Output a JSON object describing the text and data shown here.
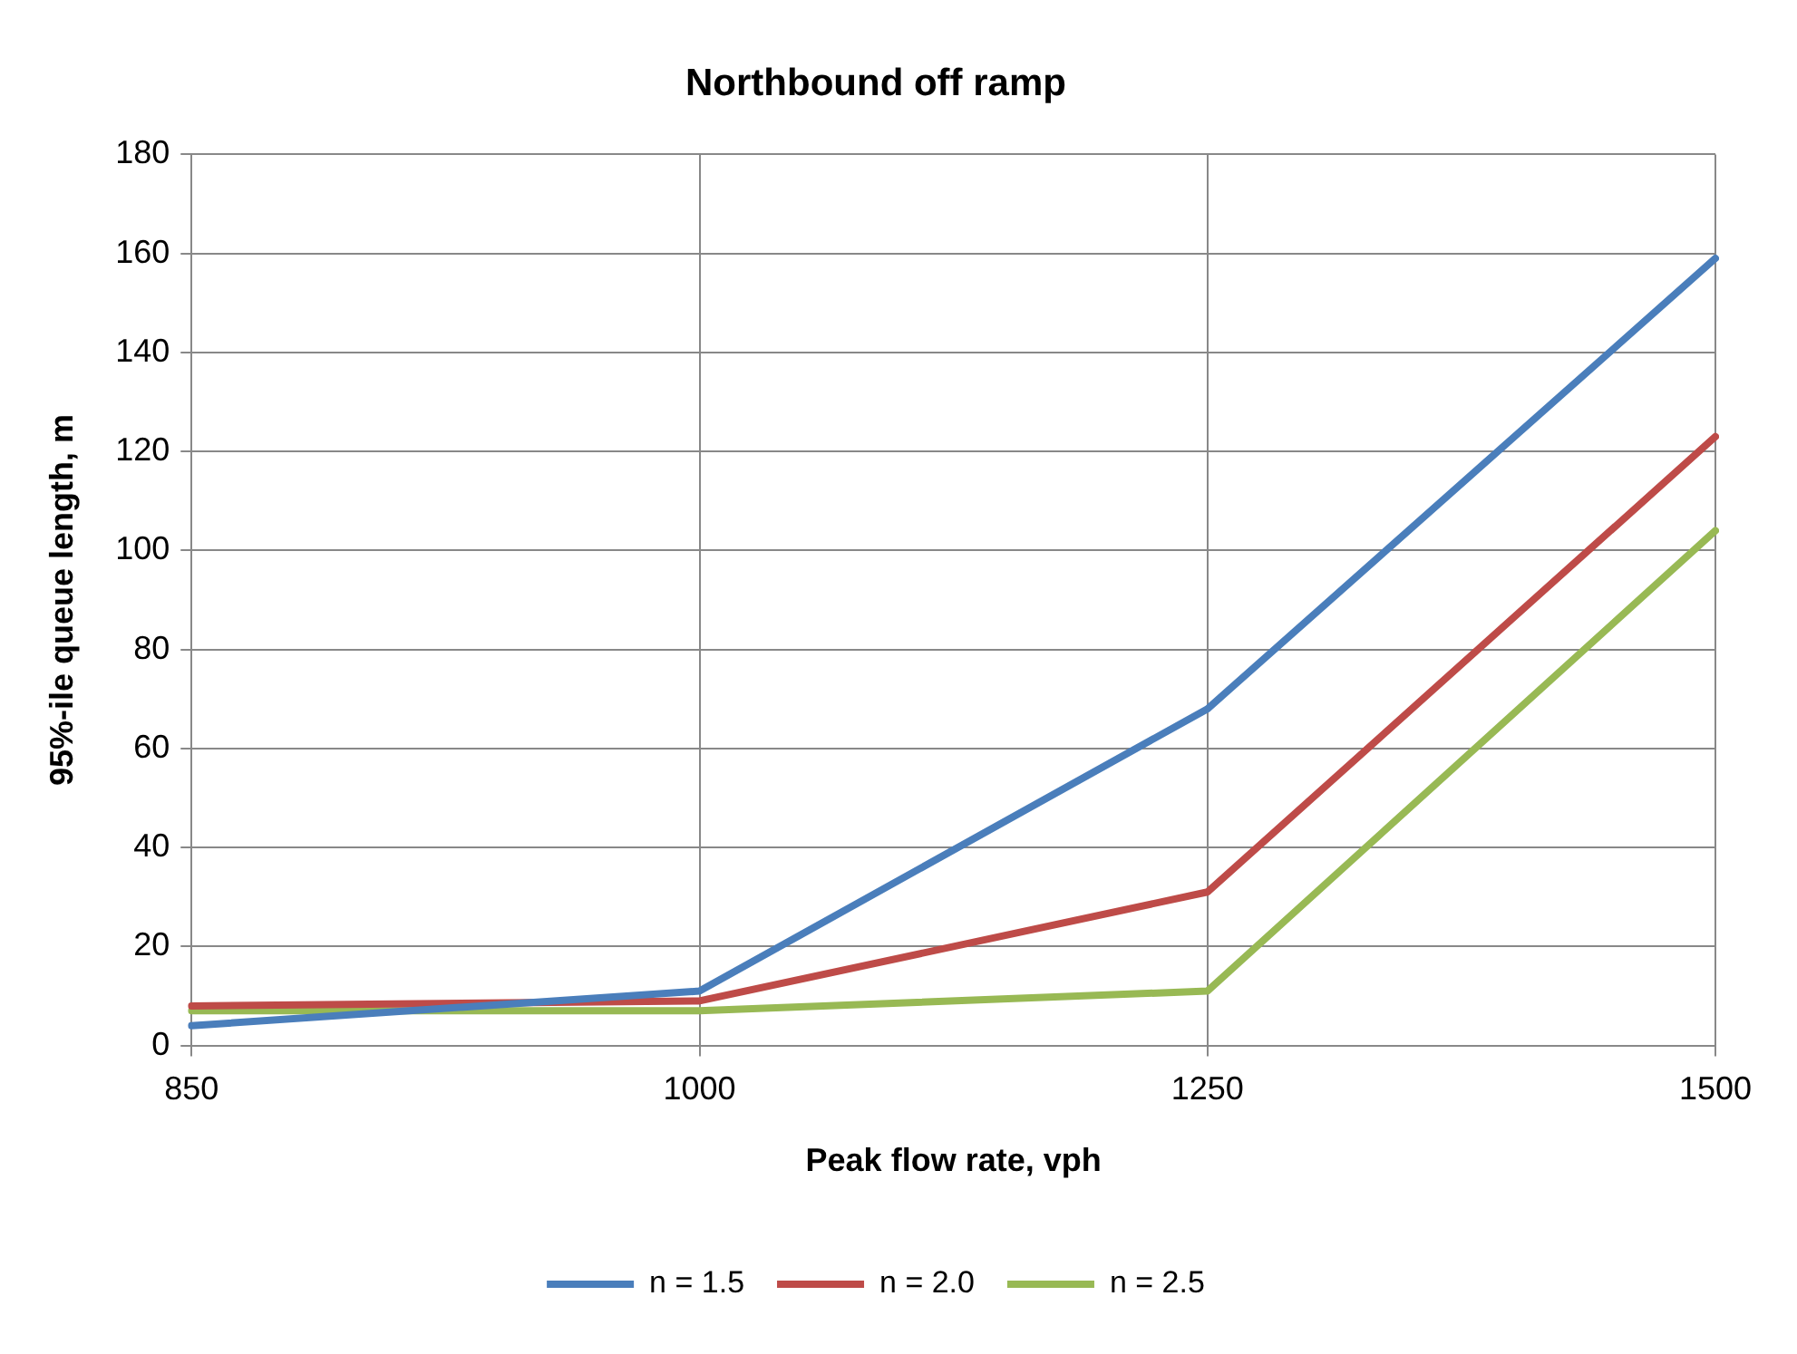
{
  "chart_data": {
    "type": "line",
    "title": "Northbound off ramp",
    "xlabel": "Peak flow rate, vph",
    "ylabel": "95%-ile queue length, m",
    "categories": [
      "850",
      "1000",
      "1250",
      "1500"
    ],
    "series": [
      {
        "name": "n = 1.5",
        "color": "#4a7ebb",
        "values": [
          4,
          11,
          68,
          159
        ]
      },
      {
        "name": "n = 2.0",
        "color": "#be4b48",
        "values": [
          8,
          9,
          31,
          123
        ]
      },
      {
        "name": "n = 2.5",
        "color": "#98b954",
        "values": [
          7,
          7,
          11,
          104
        ]
      }
    ],
    "ylim": [
      0,
      180
    ],
    "yticks": [
      0,
      20,
      40,
      60,
      80,
      100,
      120,
      140,
      160,
      180
    ],
    "grid": true,
    "legend": "bottom",
    "marker": "none",
    "line_style": "solid"
  }
}
